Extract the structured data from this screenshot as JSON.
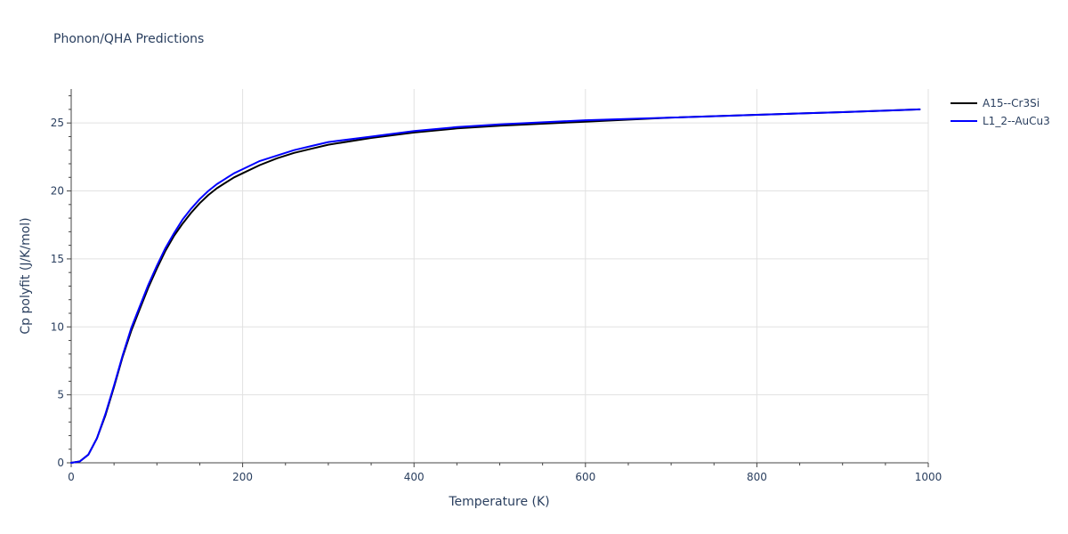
{
  "chart_data": {
    "type": "line",
    "title": "Phonon/QHA Predictions",
    "xlabel": "Temperature (K)",
    "ylabel": "Cp polyfit (J/K/mol)",
    "xlim": [
      0,
      1000
    ],
    "ylim": [
      0,
      27.5
    ],
    "xticks": [
      0,
      200,
      400,
      600,
      800,
      1000
    ],
    "yticks": [
      0,
      5,
      10,
      15,
      20,
      25
    ],
    "grid": true,
    "legend_position": "top-right",
    "series": [
      {
        "name": "A15--Cr3Si",
        "color": "#000000",
        "x": [
          0,
          10,
          20,
          30,
          40,
          50,
          60,
          70,
          80,
          90,
          100,
          110,
          120,
          130,
          140,
          150,
          160,
          170,
          180,
          190,
          200,
          220,
          240,
          260,
          280,
          300,
          350,
          400,
          450,
          500,
          600,
          700,
          800,
          900,
          990
        ],
        "y": [
          0,
          0.1,
          0.6,
          1.8,
          3.5,
          5.6,
          7.8,
          9.7,
          11.3,
          12.9,
          14.3,
          15.6,
          16.7,
          17.6,
          18.4,
          19.1,
          19.7,
          20.2,
          20.6,
          21.0,
          21.3,
          21.9,
          22.4,
          22.8,
          23.1,
          23.4,
          23.9,
          24.3,
          24.6,
          24.8,
          25.1,
          25.4,
          25.6,
          25.8,
          26.0
        ]
      },
      {
        "name": "L1_2--AuCu3",
        "color": "#0000ff",
        "x": [
          0,
          10,
          20,
          30,
          40,
          50,
          60,
          70,
          80,
          90,
          100,
          110,
          120,
          130,
          140,
          150,
          160,
          170,
          180,
          190,
          200,
          220,
          240,
          260,
          280,
          300,
          350,
          400,
          450,
          500,
          600,
          700,
          800,
          900,
          990
        ],
        "y": [
          0,
          0.1,
          0.6,
          1.8,
          3.6,
          5.7,
          7.9,
          9.9,
          11.5,
          13.1,
          14.5,
          15.8,
          16.9,
          17.9,
          18.7,
          19.4,
          20.0,
          20.5,
          20.9,
          21.3,
          21.6,
          22.2,
          22.6,
          23.0,
          23.3,
          23.6,
          24.0,
          24.4,
          24.7,
          24.9,
          25.2,
          25.4,
          25.6,
          25.8,
          26.0
        ]
      }
    ]
  }
}
